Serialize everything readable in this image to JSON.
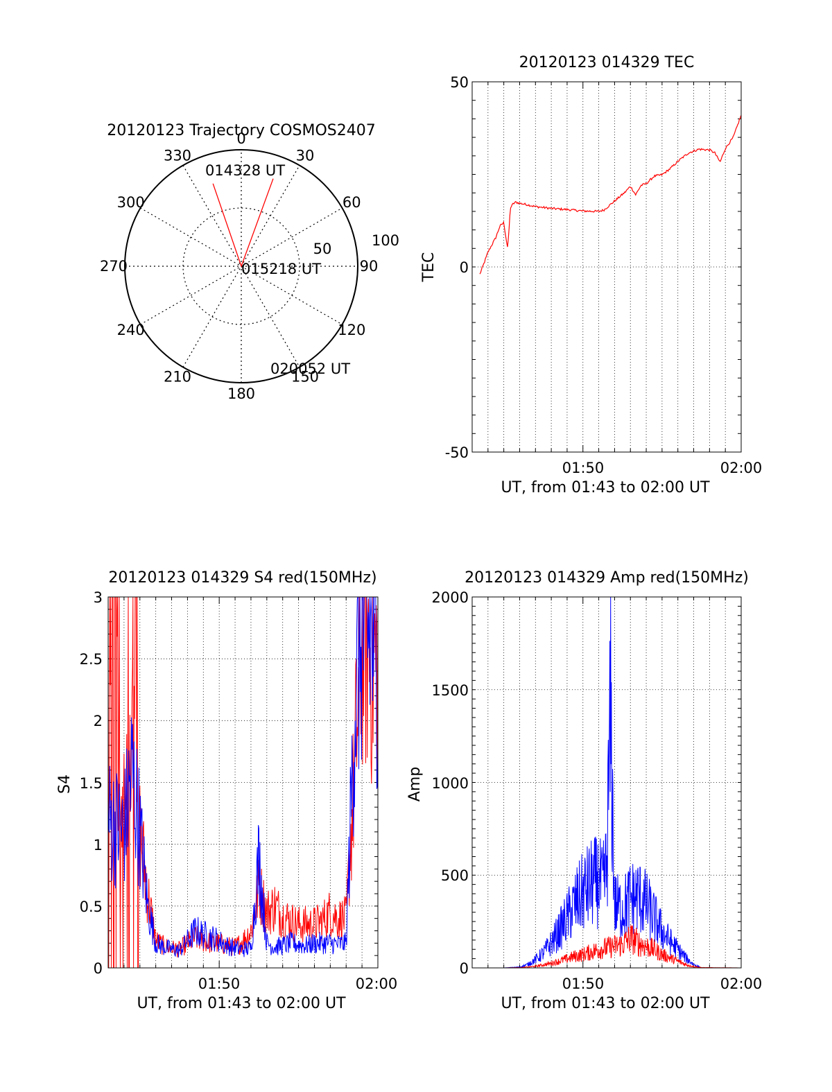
{
  "colors": {
    "red": "#ff0000",
    "blue": "#0000ff",
    "axis": "#000000"
  },
  "chart_data": [
    {
      "id": "polar",
      "type": "polar",
      "title": "20120123 Trajectory COSMOS2407",
      "angle_labels": [
        "0",
        "30",
        "60",
        "90",
        "120",
        "150",
        "180",
        "210",
        "240",
        "270",
        "300",
        "330"
      ],
      "radial_labels": [
        "50",
        "100"
      ],
      "rlim": [
        0,
        100
      ],
      "annotations": [
        "014328 UT",
        "015218 UT",
        "020052 UT"
      ],
      "trajectory": {
        "color": "red",
        "points": [
          [
            -18.9,
            75
          ],
          [
            0,
            0
          ],
          [
            20,
            80
          ]
        ]
      }
    },
    {
      "id": "tec",
      "type": "line",
      "title": "20120123 014329 TEC",
      "xlabel": "UT, from 01:43 to 02:00 UT",
      "ylabel": "TEC",
      "xlim": [
        "01:43",
        "02:00"
      ],
      "ylim": [
        -50,
        50
      ],
      "xticks": [
        "01:50",
        "02:00"
      ],
      "yticks": [
        "-50",
        "0",
        "50"
      ],
      "grid": true,
      "series": [
        {
          "color": "red",
          "x": [
            "01:43:29",
            "01:43:45",
            "01:44:00",
            "01:44:15",
            "01:44:30",
            "01:44:45",
            "01:45:00",
            "01:45:10",
            "01:45:15",
            "01:45:25",
            "01:45:35",
            "01:45:45",
            "01:46:00",
            "01:46:30",
            "01:47:00",
            "01:48:00",
            "01:49:00",
            "01:50:00",
            "01:51:00",
            "01:51:20",
            "01:52:00",
            "01:52:40",
            "01:53:00",
            "01:53:20",
            "01:53:40",
            "01:54:00",
            "01:54:30",
            "01:55:00",
            "01:55:30",
            "01:56:00",
            "01:56:40",
            "01:57:20",
            "01:58:00",
            "01:58:20",
            "01:58:40",
            "01:59:00",
            "01:59:30",
            "02:00:00"
          ],
          "y": [
            -2,
            1,
            4,
            6,
            8,
            11,
            12,
            7,
            5,
            16,
            17,
            17.5,
            17.2,
            16.8,
            16.3,
            15.8,
            15.5,
            15.1,
            15,
            15.4,
            17.8,
            20.2,
            21.8,
            19.5,
            22,
            22.5,
            24.5,
            24.9,
            26.5,
            28.5,
            30.8,
            31.8,
            31.6,
            30.8,
            28.3,
            32,
            35,
            41
          ]
        }
      ]
    },
    {
      "id": "s4",
      "type": "line",
      "title": "20120123 014329 S4 red(150MHz)",
      "xlabel": "UT, from 01:43 to 02:00 UT",
      "ylabel": "S4",
      "xlim": [
        "01:43",
        "02:00"
      ],
      "ylim": [
        0,
        3
      ],
      "xticks": [
        "01:50",
        "02:00"
      ],
      "yticks": [
        "0",
        "0.5",
        "1",
        "1.5",
        "2",
        "2.5",
        "3"
      ],
      "grid": true,
      "series": [
        {
          "color": "red",
          "x": [
            "01:43:00",
            "01:43:30",
            "01:44:00",
            "01:44:30",
            "01:45:00",
            "01:45:30",
            "01:46:00",
            "01:46:30",
            "01:47:00",
            "01:47:30",
            "01:48:00",
            "01:48:30",
            "01:49:00",
            "01:49:30",
            "01:50:00",
            "01:50:30",
            "01:51:00",
            "01:51:30",
            "01:52:00",
            "01:52:30",
            "01:53:00",
            "01:53:30",
            "01:54:00",
            "01:54:30",
            "01:55:00",
            "01:55:30",
            "01:56:00",
            "01:56:30",
            "01:57:00",
            "01:57:30",
            "01:58:00",
            "01:58:30",
            "01:59:00",
            "01:59:30",
            "02:00:00"
          ],
          "y": [
            2.5,
            2.2,
            1.3,
            1.8,
            1.1,
            0.6,
            0.22,
            0.18,
            0.16,
            0.15,
            0.2,
            0.24,
            0.22,
            0.2,
            0.2,
            0.18,
            0.17,
            0.22,
            0.3,
            0.65,
            0.45,
            0.5,
            0.42,
            0.38,
            0.35,
            0.35,
            0.35,
            0.38,
            0.45,
            0.4,
            0.4,
            1.5,
            2.8,
            2.6,
            2.4
          ]
        },
        {
          "color": "blue",
          "x": [
            "01:43:00",
            "01:43:30",
            "01:44:00",
            "01:44:30",
            "01:45:00",
            "01:45:30",
            "01:46:00",
            "01:46:30",
            "01:47:00",
            "01:47:30",
            "01:48:00",
            "01:48:30",
            "01:49:00",
            "01:49:30",
            "01:50:00",
            "01:50:30",
            "01:51:00",
            "01:51:30",
            "01:52:00",
            "01:52:30",
            "01:53:00",
            "01:53:30",
            "01:54:00",
            "01:54:30",
            "01:55:00",
            "01:55:30",
            "01:56:00",
            "01:56:30",
            "01:57:00",
            "01:57:30",
            "01:58:00",
            "01:58:30",
            "01:59:00",
            "01:59:30",
            "02:00:00"
          ],
          "y": [
            1.2,
            1.15,
            1.1,
            1.6,
            1.1,
            0.5,
            0.2,
            0.17,
            0.15,
            0.14,
            0.22,
            0.3,
            0.27,
            0.25,
            0.22,
            0.18,
            0.16,
            0.15,
            0.16,
            0.9,
            0.2,
            0.17,
            0.18,
            0.2,
            0.19,
            0.18,
            0.2,
            0.2,
            0.2,
            0.19,
            0.2,
            2.0,
            2.8,
            2.7,
            2.6
          ]
        }
      ]
    },
    {
      "id": "amp",
      "type": "line",
      "title": "20120123 014329 Amp red(150MHz)",
      "xlabel": "UT, from 01:43 to 02:00 UT",
      "ylabel": "Amp",
      "xlim": [
        "01:43",
        "02:00"
      ],
      "ylim": [
        0,
        2000
      ],
      "xticks": [
        "01:50",
        "02:00"
      ],
      "yticks": [
        "0",
        "500",
        "1000",
        "1500",
        "2000"
      ],
      "grid": true,
      "series": [
        {
          "color": "red",
          "x": [
            "01:43:30",
            "01:45:00",
            "01:46:00",
            "01:46:30",
            "01:47:00",
            "01:47:30",
            "01:48:00",
            "01:48:30",
            "01:49:00",
            "01:49:30",
            "01:50:00",
            "01:50:30",
            "01:51:00",
            "01:51:30",
            "01:52:00",
            "01:52:30",
            "01:53:00",
            "01:53:30",
            "01:54:00",
            "01:54:30",
            "01:55:00",
            "01:55:30",
            "01:56:00",
            "01:56:30",
            "01:57:00",
            "01:57:30",
            "02:00:00"
          ],
          "y": [
            0,
            0,
            2,
            5,
            10,
            18,
            28,
            40,
            55,
            70,
            80,
            95,
            110,
            120,
            130,
            140,
            180,
            150,
            130,
            110,
            80,
            60,
            40,
            20,
            8,
            2,
            0
          ]
        },
        {
          "color": "blue",
          "x": [
            "01:43:30",
            "01:45:00",
            "01:46:00",
            "01:46:30",
            "01:47:00",
            "01:47:30",
            "01:48:00",
            "01:48:30",
            "01:49:00",
            "01:49:30",
            "01:50:00",
            "01:50:30",
            "01:51:00",
            "01:51:15",
            "01:51:30",
            "01:51:45",
            "01:52:00",
            "01:52:30",
            "01:53:00",
            "01:53:30",
            "01:54:00",
            "01:54:30",
            "01:55:00",
            "01:55:30",
            "01:56:00",
            "01:56:30",
            "01:57:00",
            "01:57:30",
            "02:00:00"
          ],
          "y": [
            0,
            0,
            5,
            20,
            50,
            90,
            150,
            220,
            300,
            380,
            450,
            500,
            520,
            470,
            600,
            1500,
            380,
            350,
            420,
            430,
            380,
            300,
            220,
            160,
            110,
            60,
            20,
            0,
            0
          ]
        }
      ]
    }
  ]
}
